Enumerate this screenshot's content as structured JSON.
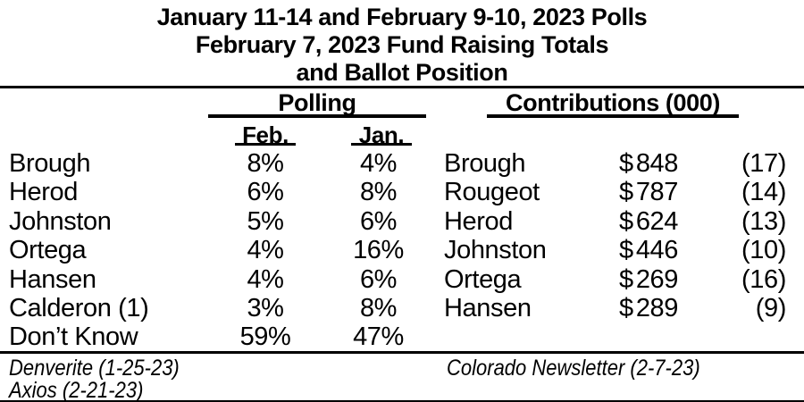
{
  "title": {
    "line1": "January 11-14 and February 9-10, 2023 Polls",
    "line2": "February 7, 2023 Fund Raising Totals",
    "line3": "and Ballot Position"
  },
  "polling": {
    "header": "Polling",
    "columns": {
      "feb": "Feb.",
      "jan": "Jan."
    },
    "rows": [
      {
        "name": "Brough",
        "feb": "8%",
        "jan": "4%"
      },
      {
        "name": "Herod",
        "feb": "6%",
        "jan": "8%"
      },
      {
        "name": "Johnston",
        "feb": "5%",
        "jan": "6%"
      },
      {
        "name": "Ortega",
        "feb": "4%",
        "jan": "16%"
      },
      {
        "name": "Hansen",
        "feb": "4%",
        "jan": "6%"
      },
      {
        "name": "Calderon (1)",
        "feb": "3%",
        "jan": "8%"
      },
      {
        "name": "Don’t Know",
        "feb": "59%",
        "jan": "47%"
      }
    ]
  },
  "contributions": {
    "header": "Contributions (000)",
    "currency_symbol": "$",
    "rows": [
      {
        "name": "Brough",
        "amount": "848",
        "ballot": "(17)"
      },
      {
        "name": "Rougeot",
        "amount": "787",
        "ballot": "(14)"
      },
      {
        "name": "Herod",
        "amount": "624",
        "ballot": "(13)"
      },
      {
        "name": "Johnston",
        "amount": "446",
        "ballot": "(10)"
      },
      {
        "name": "Ortega",
        "amount": "269",
        "ballot": "(16)"
      },
      {
        "name": "Hansen",
        "amount": "289",
        "ballot": "(9)"
      }
    ]
  },
  "footer": {
    "source_left_1": "Denverite (1-25-23)",
    "source_left_2": "Axios (2-21-23)",
    "source_right": "Colorado Newsletter (2-7-23)"
  },
  "colors": {
    "text": "#000000",
    "background": "#ffffff"
  }
}
